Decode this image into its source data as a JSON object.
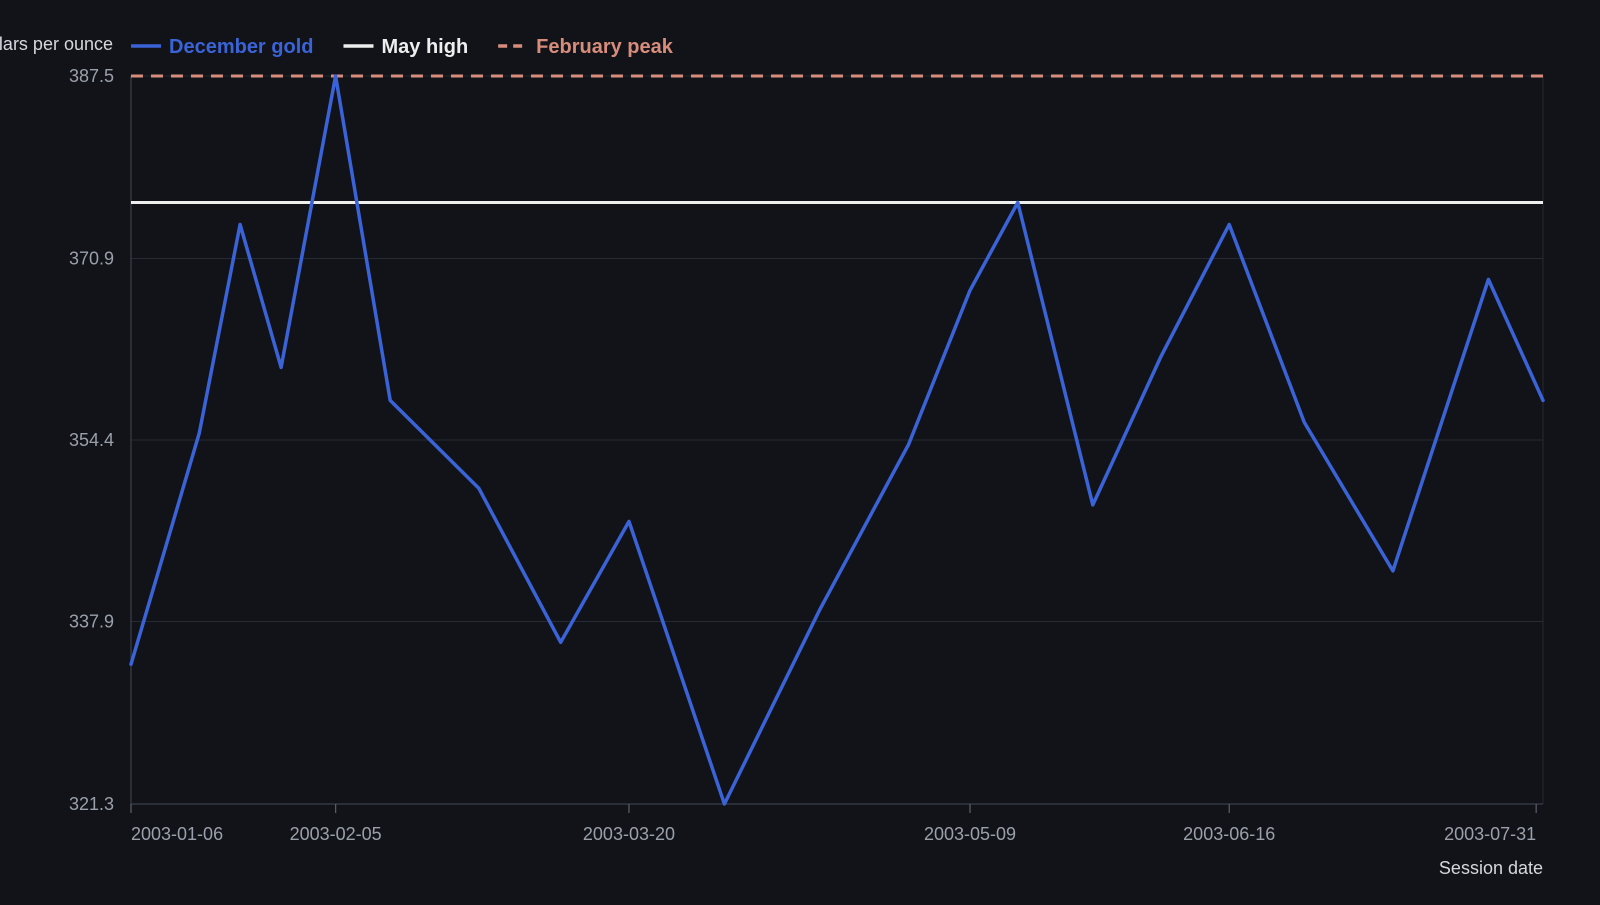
{
  "chart_data": {
    "type": "line",
    "xlabel": "Session date",
    "ylabel": "Dollars per ounce",
    "ylim": [
      321.3,
      387.5
    ],
    "yticks": [
      "321.3",
      "337.9",
      "354.4",
      "370.9",
      "387.5"
    ],
    "xlim": [
      "2003-01-06",
      "2003-08-01"
    ],
    "xticks": [
      "2003-01-06",
      "2003-02-05",
      "2003-03-20",
      "2003-05-09",
      "2003-06-16",
      "2003-07-31"
    ],
    "grid": true,
    "legend_position": "top-left",
    "series": [
      {
        "name": "December gold",
        "color": "#3a63d8",
        "style": "solid",
        "x": [
          "2003-01-06",
          "2003-01-16",
          "2003-01-22",
          "2003-01-28",
          "2003-02-05",
          "2003-02-13",
          "2003-02-26",
          "2003-03-10",
          "2003-03-20",
          "2003-04-03",
          "2003-04-17",
          "2003-04-30",
          "2003-05-09",
          "2003-05-16",
          "2003-05-27",
          "2003-06-06",
          "2003-06-16",
          "2003-06-27",
          "2003-07-10",
          "2003-07-24",
          "2003-08-01"
        ],
        "y": [
          334.0,
          355.0,
          374.0,
          361.0,
          387.5,
          358.0,
          350.0,
          336.0,
          347.0,
          321.3,
          339.0,
          354.0,
          368.0,
          376.0,
          348.5,
          362.0,
          374.0,
          356.0,
          342.5,
          369.0,
          358.0
        ]
      },
      {
        "name": "May high",
        "color": "#eeeeee",
        "style": "solid",
        "value": 376.0
      },
      {
        "name": "February peak",
        "color": "#d88c7c",
        "style": "dashed",
        "value": 387.5
      }
    ]
  }
}
